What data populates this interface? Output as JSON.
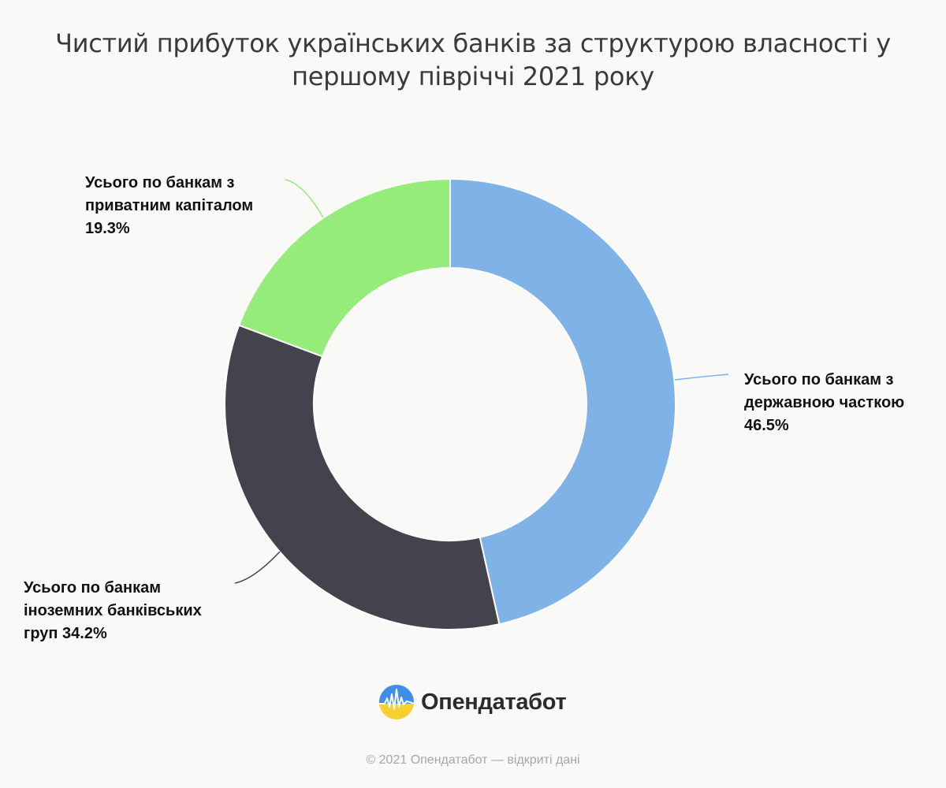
{
  "chart_data": {
    "type": "pie",
    "subtype": "donut",
    "title_lines": [
      "Чистий прибуток українських банків за структурою власності у",
      "першому півріччі 2021 року"
    ],
    "slices": [
      {
        "label_lines": [
          "Усього по банкам з",
          "державною часткою",
          "46.5%"
        ],
        "value": 46.5,
        "color": "#7fb3e8"
      },
      {
        "label_lines": [
          "Усього по банкам",
          "іноземних банківських",
          "груп 34.2%"
        ],
        "value": 34.2,
        "color": "#44424c"
      },
      {
        "label_lines": [
          "Усього по банкам з",
          "приватним капіталом",
          "19.3%"
        ],
        "value": 19.3,
        "color": "#96ec7b"
      }
    ],
    "unit": "%",
    "legend": "none",
    "labels": "outside-with-leader-lines"
  },
  "brand": {
    "name": "Опендатабот",
    "logo_colors": [
      "#3f8ee8",
      "#f7cf2f"
    ]
  },
  "footer": {
    "text": "© 2021 Опендатабот — відкриті дані"
  }
}
